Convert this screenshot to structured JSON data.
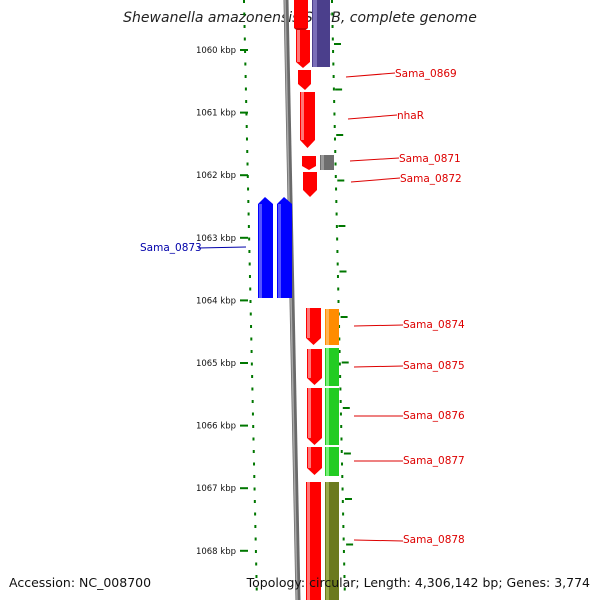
{
  "title": "Shewanella amazonensis SB2B, complete genome",
  "footer": {
    "accession": "Accession: NC_008700",
    "topology": "Topology: circular; Length: 4,306,142 bp; Genes: 3,774"
  },
  "axis_ticks": [
    "1060 kbp",
    "1061 kbp",
    "1062 kbp",
    "1063 kbp",
    "1064 kbp",
    "1065 kbp",
    "1066 kbp",
    "1067 kbp",
    "1068 kbp"
  ],
  "colors": {
    "gene_red": "#ff0000",
    "gene_blue": "#0000ff",
    "purple": "#4b3f8c",
    "gray": "#6e6e6e",
    "orange": "#ff8c00",
    "green": "#22cc22",
    "olive": "#6b7a1e",
    "tick_green": "#007700",
    "label_red": "#dd0000",
    "label_blue": "#0000aa",
    "backbone": "#888888"
  },
  "genes": [
    {
      "label": "Sama_0869",
      "side": "right"
    },
    {
      "label": "nhaR",
      "side": "right"
    },
    {
      "label": "Sama_0871",
      "side": "right"
    },
    {
      "label": "Sama_0872",
      "side": "right"
    },
    {
      "label": "Sama_0873",
      "side": "left"
    },
    {
      "label": "Sama_0874",
      "side": "right"
    },
    {
      "label": "Sama_0875",
      "side": "right"
    },
    {
      "label": "Sama_0876",
      "side": "right"
    },
    {
      "label": "Sama_0877",
      "side": "right"
    },
    {
      "label": "Sama_0878",
      "side": "right"
    }
  ]
}
